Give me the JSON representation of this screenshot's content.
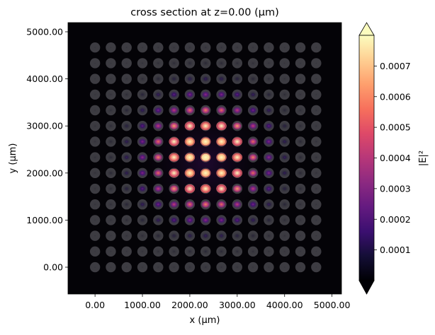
{
  "chart_data": {
    "type": "heatmap",
    "title": "cross section at z=0.00 (µm)",
    "xlabel": "x (µm)",
    "ylabel": "y (µm)",
    "xlim": [
      -570,
      5200
    ],
    "ylim": [
      -570,
      5195
    ],
    "x_ticks": [
      "0.00",
      "1000.00",
      "2000.00",
      "3000.00",
      "4000.00",
      "5000.00"
    ],
    "x_tick_values": [
      0,
      1000,
      2000,
      3000,
      4000,
      5000
    ],
    "y_ticks": [
      "0.00",
      "1000.00",
      "2000.00",
      "3000.00",
      "4000.00",
      "5000.00"
    ],
    "y_tick_values": [
      0,
      1000,
      2000,
      3000,
      4000,
      5000
    ],
    "grid": false,
    "colormap": "magma",
    "colorbar": {
      "label": "|E|²",
      "vmin": 0,
      "vmax": 0.0008,
      "extend": "both",
      "ticks": [
        "0.0001",
        "0.0002",
        "0.0003",
        "0.0004",
        "0.0005",
        "0.0006",
        "0.0007"
      ],
      "tick_values": [
        0.0001,
        0.0002,
        0.0003,
        0.0004,
        0.0005,
        0.0006,
        0.0007
      ]
    },
    "resonator_color": "#3d3c42",
    "background_color": "#040307",
    "x": [
      0,
      333.3,
      666.7,
      1000,
      1333.3,
      1666.7,
      2000,
      2333.3,
      2666.7,
      3000,
      3333.3,
      3666.7,
      4000,
      4333.3,
      4666.7
    ],
    "y": [
      0,
      333.3,
      666.7,
      1000,
      1333.3,
      1666.7,
      2000,
      2333.3,
      2666.7,
      3000,
      3333.3,
      3666.7,
      4000,
      4333.3,
      4666.7
    ],
    "values": [
      [
        5e-07,
        1e-06,
        3e-06,
        7e-06,
        1.2e-05,
        1.7e-05,
        2.2e-05,
        2.4e-05,
        2.2e-05,
        1.7e-05,
        1.2e-05,
        7e-06,
        3e-06,
        1e-06,
        5e-07
      ],
      [
        1e-06,
        4e-06,
        9e-06,
        1.9e-05,
        3.3e-05,
        4.9e-05,
        6.2e-05,
        6.7e-05,
        6.2e-05,
        4.9e-05,
        3.3e-05,
        1.9e-05,
        9e-06,
        4e-06,
        1e-06
      ],
      [
        3e-06,
        9e-06,
        2.2e-05,
        4.5e-05,
        7.9e-05,
        0.000118,
        0.00015,
        0.000162,
        0.00015,
        0.000118,
        7.9e-05,
        4.5e-05,
        2.2e-05,
        9e-06,
        3e-06
      ],
      [
        7e-06,
        1.9e-05,
        4.5e-05,
        9.3e-05,
        0.000162,
        0.000242,
        0.000308,
        0.000334,
        0.000308,
        0.000242,
        0.000162,
        9.3e-05,
        4.5e-05,
        1.9e-05,
        7e-06
      ],
      [
        1.2e-05,
        3.3e-05,
        7.9e-05,
        0.000162,
        0.000285,
        0.000424,
        0.00054,
        0.000584,
        0.00054,
        0.000424,
        0.000285,
        0.000162,
        7.9e-05,
        3.3e-05,
        1.2e-05
      ],
      [
        1.7e-05,
        4.9e-05,
        0.000118,
        0.000242,
        0.000424,
        0.000632,
        0.000804,
        0.000871,
        0.000804,
        0.000632,
        0.000424,
        0.000242,
        0.000118,
        4.9e-05,
        1.7e-05
      ],
      [
        2.2e-05,
        6.2e-05,
        0.00015,
        0.000308,
        0.00054,
        0.000804,
        0.001022,
        0.001108,
        0.001022,
        0.000804,
        0.00054,
        0.000308,
        0.00015,
        6.2e-05,
        2.2e-05
      ],
      [
        2.4e-05,
        6.7e-05,
        0.000162,
        0.000334,
        0.000584,
        0.000871,
        0.001108,
        0.0012,
        0.001108,
        0.000871,
        0.000584,
        0.000334,
        0.000162,
        6.7e-05,
        2.4e-05
      ],
      [
        2.2e-05,
        6.2e-05,
        0.00015,
        0.000308,
        0.00054,
        0.000804,
        0.001022,
        0.001108,
        0.001022,
        0.000804,
        0.00054,
        0.000308,
        0.00015,
        6.2e-05,
        2.2e-05
      ],
      [
        1.7e-05,
        4.9e-05,
        0.000118,
        0.000242,
        0.000424,
        0.000632,
        0.000804,
        0.000871,
        0.000804,
        0.000632,
        0.000424,
        0.000242,
        0.000118,
        4.9e-05,
        1.7e-05
      ],
      [
        1.2e-05,
        3.3e-05,
        7.9e-05,
        0.000162,
        0.000285,
        0.000424,
        0.00054,
        0.000584,
        0.00054,
        0.000424,
        0.000285,
        0.000162,
        7.9e-05,
        3.3e-05,
        1.2e-05
      ],
      [
        7e-06,
        1.9e-05,
        4.5e-05,
        9.3e-05,
        0.000162,
        0.000242,
        0.000308,
        0.000334,
        0.000308,
        0.000242,
        0.000162,
        9.3e-05,
        4.5e-05,
        1.9e-05,
        7e-06
      ],
      [
        3e-06,
        9e-06,
        2.2e-05,
        4.5e-05,
        7.9e-05,
        0.000118,
        0.00015,
        0.000162,
        0.00015,
        0.000118,
        7.9e-05,
        4.5e-05,
        2.2e-05,
        9e-06,
        3e-06
      ],
      [
        1e-06,
        4e-06,
        9e-06,
        1.9e-05,
        3.3e-05,
        4.9e-05,
        6.2e-05,
        6.7e-05,
        6.2e-05,
        4.9e-05,
        3.3e-05,
        1.9e-05,
        9e-06,
        4e-06,
        1e-06
      ],
      [
        5e-07,
        1e-06,
        3e-06,
        7e-06,
        1.2e-05,
        1.7e-05,
        2.2e-05,
        2.4e-05,
        2.2e-05,
        1.7e-05,
        1.2e-05,
        7e-06,
        3e-06,
        1e-06,
        5e-07
      ]
    ]
  }
}
